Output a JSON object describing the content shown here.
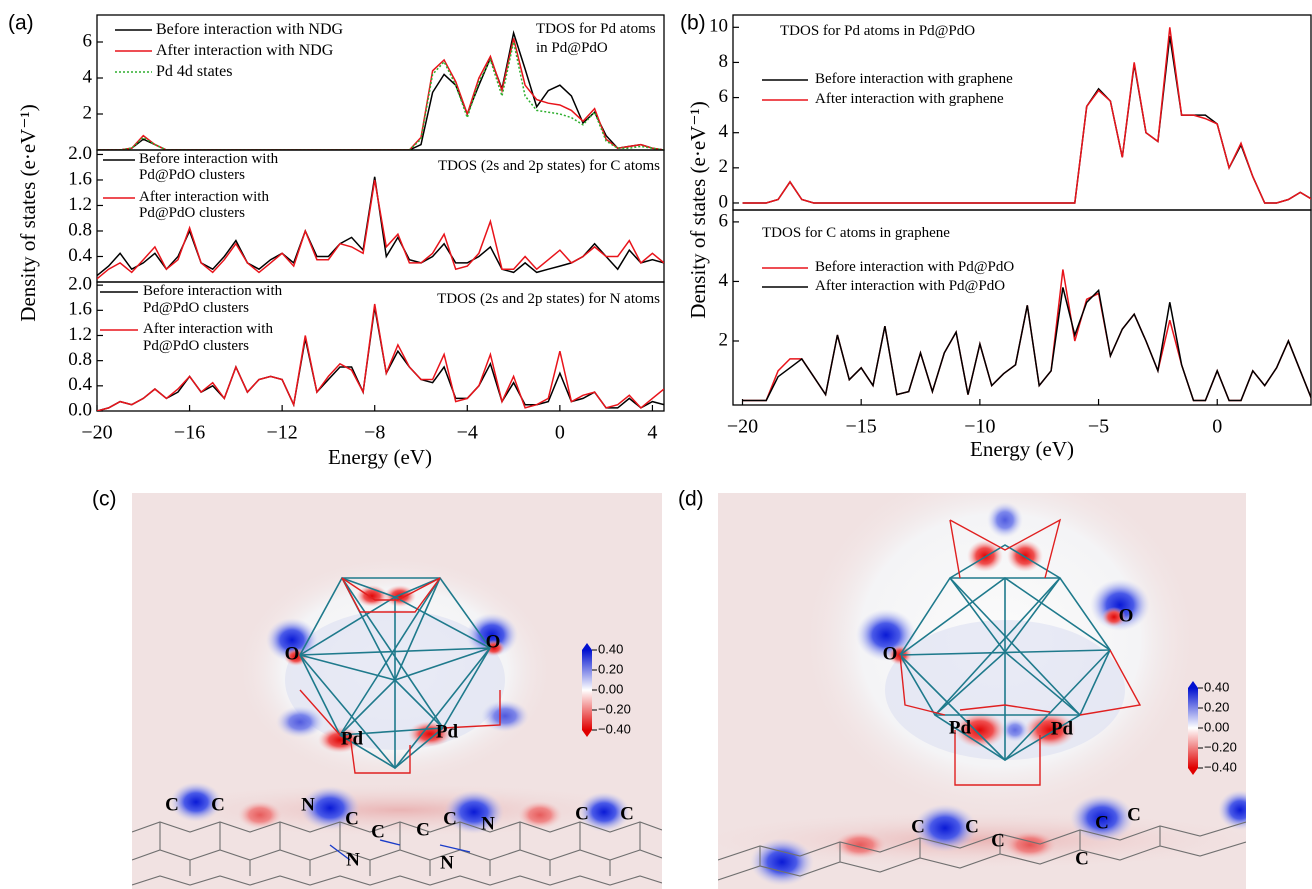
{
  "panels": [
    {
      "label": "(a)",
      "xlabel": "Energy (eV)",
      "ylabel": "Density of states (e·eV⁻¹)"
    },
    {
      "label": "(b)",
      "xlabel": "Energy (eV)",
      "ylabel": "Density of states (e·eV⁻¹)"
    },
    {
      "label": "(c)",
      "atoms": [
        "O",
        "O",
        "Pd",
        "Pd",
        "C",
        "C",
        "N",
        "C",
        "C",
        "N",
        "C",
        "C",
        "N",
        "N",
        "C",
        "C"
      ],
      "colorbar": [
        {
          "value": 0.4,
          "label": "0.40"
        },
        {
          "value": 0.2,
          "label": "0.20"
        },
        {
          "value": 0,
          "label": "0.00"
        },
        {
          "value": -0.2,
          "label": "−0.20"
        },
        {
          "value": -0.4,
          "label": "−0.40"
        }
      ]
    },
    {
      "label": "(d)",
      "atoms": [
        "O",
        "O",
        "Pd",
        "Pd",
        "C",
        "C",
        "C",
        "C",
        "C",
        "C"
      ],
      "colorbar": [
        {
          "value": 0.4,
          "label": "0.40"
        },
        {
          "value": 0.2,
          "label": "0.20"
        },
        {
          "value": 0,
          "label": "0.00"
        },
        {
          "value": -0.2,
          "label": "−0.20"
        },
        {
          "value": -0.4,
          "label": "−0.40"
        }
      ]
    }
  ],
  "chart_data": [
    {
      "type": "line",
      "annotation": "TDOS for Pd atoms\nin Pd@PdO",
      "x": [
        -20,
        -19.5,
        -19,
        -18.5,
        -18,
        -17.5,
        -17,
        -16.5,
        -16,
        -15.5,
        -15,
        -14.5,
        -14,
        -13.5,
        -13,
        -12.5,
        -12,
        -11.5,
        -11,
        -10.5,
        -10,
        -9.5,
        -9,
        -8.5,
        -8,
        -7.5,
        -7,
        -6.5,
        -6,
        -5.5,
        -5,
        -4.5,
        -4,
        -3.5,
        -3,
        -2.5,
        -2,
        -1.5,
        -1,
        -0.5,
        0,
        0.5,
        1,
        1.5,
        2,
        2.5,
        3,
        3.5,
        4,
        4.5
      ],
      "xlim": [
        -20,
        4.5
      ],
      "ylim": [
        0,
        7.5
      ],
      "yticks": [
        2,
        4,
        6
      ],
      "series": [
        {
          "name": "Before interaction with NDG",
          "color": "#000000",
          "linestyle": "solid",
          "values": [
            0,
            0,
            0,
            0.1,
            0.6,
            0.3,
            0,
            0,
            0,
            0,
            0,
            0,
            0,
            0,
            0,
            0,
            0,
            0,
            0,
            0,
            0,
            0,
            0,
            0,
            0,
            0,
            0,
            0,
            0.3,
            3.2,
            4.2,
            3.6,
            2,
            3.6,
            5.1,
            3.4,
            6.5,
            4.5,
            2.4,
            3.3,
            3.6,
            3,
            1.5,
            2.1,
            0.8,
            0.1,
            0.2,
            0.3,
            0.1,
            0
          ]
        },
        {
          "name": "After interaction with NDG",
          "color": "#e8141b",
          "linestyle": "solid",
          "values": [
            0,
            0,
            0,
            0.1,
            0.8,
            0.3,
            0,
            0,
            0,
            0,
            0,
            0,
            0,
            0,
            0,
            0,
            0,
            0,
            0,
            0,
            0,
            0,
            0,
            0,
            0,
            0,
            0,
            0,
            0.7,
            4.4,
            5,
            3.8,
            2,
            4,
            5.2,
            3.3,
            6.2,
            3.6,
            2.8,
            2.6,
            2.5,
            2.2,
            1.6,
            2.3,
            0.6,
            0.1,
            0.2,
            0.3,
            0.1,
            0
          ]
        },
        {
          "name": "Pd 4d states",
          "color": "#2eae2e",
          "linestyle": "dotted",
          "values": [
            0,
            0,
            0,
            0.1,
            0.7,
            0.3,
            0,
            0,
            0,
            0,
            0,
            0,
            0,
            0,
            0,
            0,
            0,
            0,
            0,
            0,
            0,
            0,
            0,
            0,
            0,
            0,
            0,
            0,
            0.6,
            4.2,
            4.9,
            3.6,
            1.8,
            3.8,
            5,
            3,
            6,
            3,
            2.2,
            2.1,
            2,
            1.8,
            1.4,
            2.1,
            0.5,
            0.1,
            0.1,
            0.2,
            0.1,
            0
          ]
        }
      ]
    },
    {
      "type": "line",
      "annotation": "TDOS (2s and 2p states) for C atoms",
      "x": [
        -20,
        -19.5,
        -19,
        -18.5,
        -18,
        -17.5,
        -17,
        -16.5,
        -16,
        -15.5,
        -15,
        -14.5,
        -14,
        -13.5,
        -13,
        -12.5,
        -12,
        -11.5,
        -11,
        -10.5,
        -10,
        -9.5,
        -9,
        -8.5,
        -8,
        -7.5,
        -7,
        -6.5,
        -6,
        -5.5,
        -5,
        -4.5,
        -4,
        -3.5,
        -3,
        -2.5,
        -2,
        -1.5,
        -1,
        -0.5,
        0,
        0.5,
        1,
        1.5,
        2,
        2.5,
        3,
        3.5,
        4,
        4.5
      ],
      "xlim": [
        -20,
        4.5
      ],
      "ylim": [
        0,
        2.07
      ],
      "yticks": [
        0.4,
        0.8,
        1.2,
        1.6,
        {
          "value": 2,
          "label": "2.0"
        }
      ],
      "series": [
        {
          "name": "Before interaction with\nPd@PdO clusters",
          "color": "#000000",
          "linestyle": "solid",
          "values": [
            0.1,
            0.25,
            0.45,
            0.2,
            0.3,
            0.45,
            0.2,
            0.4,
            0.8,
            0.3,
            0.2,
            0.4,
            0.65,
            0.3,
            0.2,
            0.35,
            0.45,
            0.3,
            0.8,
            0.4,
            0.4,
            0.6,
            0.7,
            0.5,
            1.65,
            0.4,
            0.7,
            0.35,
            0.3,
            0.4,
            0.6,
            0.3,
            0.3,
            0.4,
            0.55,
            0.2,
            0.15,
            0.3,
            0.15,
            0.2,
            0.25,
            0.3,
            0.4,
            0.6,
            0.4,
            0.2,
            0.5,
            0.3,
            0.35,
            0.3
          ]
        },
        {
          "name": "After interaction with\nPd@PdO clusters",
          "color": "#e8141b",
          "linestyle": "solid",
          "values": [
            0.05,
            0.2,
            0.3,
            0.15,
            0.35,
            0.55,
            0.2,
            0.35,
            0.85,
            0.3,
            0.15,
            0.35,
            0.6,
            0.3,
            0.15,
            0.3,
            0.45,
            0.25,
            0.8,
            0.35,
            0.35,
            0.6,
            0.55,
            0.45,
            1.6,
            0.55,
            0.75,
            0.3,
            0.3,
            0.45,
            0.75,
            0.2,
            0.25,
            0.45,
            0.95,
            0.2,
            0.2,
            0.4,
            0.2,
            0.35,
            0.5,
            0.3,
            0.4,
            0.55,
            0.4,
            0.4,
            0.65,
            0.3,
            0.45,
            0.3
          ]
        }
      ]
    },
    {
      "type": "line",
      "annotation": "TDOS (2s and 2p states) for N atoms",
      "x": [
        -20,
        -19.5,
        -19,
        -18.5,
        -18,
        -17.5,
        -17,
        -16.5,
        -16,
        -15.5,
        -15,
        -14.5,
        -14,
        -13.5,
        -13,
        -12.5,
        -12,
        -11.5,
        -11,
        -10.5,
        -10,
        -9.5,
        -9,
        -8.5,
        -8,
        -7.5,
        -7,
        -6.5,
        -6,
        -5.5,
        -5,
        -4.5,
        -4,
        -3.5,
        -3,
        -2.5,
        -2,
        -1.5,
        -1,
        -0.5,
        0,
        0.5,
        1,
        1.5,
        2,
        2.5,
        3,
        3.5,
        4,
        4.5
      ],
      "xlim": [
        -20,
        4.5
      ],
      "ylim": [
        0,
        2.05
      ],
      "yticks": [
        {
          "value": 0,
          "label": "0.0"
        },
        0.4,
        0.8,
        1.2,
        1.6,
        {
          "value": 2,
          "label": "2.0"
        }
      ],
      "xticks": [
        {
          "value": -20,
          "label": "−20"
        },
        {
          "value": -16,
          "label": "−16"
        },
        {
          "value": -12,
          "label": "−12"
        },
        {
          "value": -8,
          "label": "−8"
        },
        {
          "value": -4,
          "label": "−4"
        },
        0,
        4
      ],
      "series": [
        {
          "name": "Before interaction with\nPd@PdO clusters",
          "color": "#000000",
          "linestyle": "solid",
          "values": [
            0,
            0.05,
            0.15,
            0.1,
            0.2,
            0.35,
            0.2,
            0.3,
            0.55,
            0.3,
            0.4,
            0.2,
            0.7,
            0.3,
            0.5,
            0.55,
            0.5,
            0.1,
            1.15,
            0.3,
            0.5,
            0.7,
            0.7,
            0.3,
            1.65,
            0.6,
            0.95,
            0.7,
            0.5,
            0.45,
            0.7,
            0.2,
            0.2,
            0.4,
            0.75,
            0.15,
            0.45,
            0.1,
            0.1,
            0.15,
            0.6,
            0.15,
            0.2,
            0.3,
            0.05,
            0.05,
            0.2,
            0.05,
            0.15,
            0.1
          ]
        },
        {
          "name": "After interaction with\nPd@PdO clusters",
          "color": "#e8141b",
          "linestyle": "solid",
          "values": [
            0,
            0.05,
            0.15,
            0.1,
            0.2,
            0.35,
            0.2,
            0.35,
            0.55,
            0.3,
            0.45,
            0.2,
            0.7,
            0.3,
            0.5,
            0.55,
            0.5,
            0.1,
            1.2,
            0.3,
            0.55,
            0.75,
            0.65,
            0.3,
            1.7,
            0.6,
            1.05,
            0.7,
            0.5,
            0.5,
            0.9,
            0.15,
            0.2,
            0.4,
            0.9,
            0.15,
            0.55,
            0.05,
            0.1,
            0.2,
            0.95,
            0.15,
            0.25,
            0.3,
            0.05,
            0.1,
            0.25,
            0.05,
            0.2,
            0.35
          ]
        }
      ]
    },
    {
      "type": "line",
      "annotation": "TDOS for Pd atoms in Pd@PdO",
      "x": [
        -20,
        -19.5,
        -19,
        -18.5,
        -18,
        -17.5,
        -17,
        -16.5,
        -16,
        -15.5,
        -15,
        -14.5,
        -14,
        -13.5,
        -13,
        -12.5,
        -12,
        -11.5,
        -11,
        -10.5,
        -10,
        -9.5,
        -9,
        -8.5,
        -8,
        -7.5,
        -7,
        -6.5,
        -6,
        -5.5,
        -5,
        -4.5,
        -4,
        -3.5,
        -3,
        -2.5,
        -2,
        -1.5,
        -1,
        -0.5,
        0,
        0.5,
        1,
        1.5,
        2,
        2.5,
        3,
        3.5,
        4
      ],
      "xlim": [
        -20.4,
        3.95
      ],
      "ylim": [
        -0.4,
        10.7
      ],
      "yticks": [
        0,
        2,
        4,
        6,
        8,
        10
      ],
      "series": [
        {
          "name": "Before interaction with graphene",
          "color": "#000000",
          "linestyle": "solid",
          "values": [
            0,
            0,
            0,
            0.2,
            1.2,
            0.2,
            0,
            0,
            0,
            0,
            0,
            0,
            0,
            0,
            0,
            0,
            0,
            0,
            0,
            0,
            0,
            0,
            0,
            0,
            0,
            0,
            0,
            0,
            0,
            5.5,
            6.5,
            5.8,
            2.6,
            7.9,
            4,
            3.5,
            9.5,
            5,
            5,
            5,
            4.5,
            2,
            3.3,
            1.5,
            0,
            0,
            0.2,
            0.6,
            0.2
          ]
        },
        {
          "name": "After interaction with graphene",
          "color": "#e8141b",
          "linestyle": "solid",
          "values": [
            0,
            0,
            0,
            0.2,
            1.2,
            0.2,
            0,
            0,
            0,
            0,
            0,
            0,
            0,
            0,
            0,
            0,
            0,
            0,
            0,
            0,
            0,
            0,
            0,
            0,
            0,
            0,
            0,
            0,
            0,
            5.5,
            6.4,
            5.8,
            2.6,
            8,
            4,
            3.5,
            10,
            5,
            5,
            4.8,
            4.5,
            2,
            3.4,
            1.5,
            0,
            0,
            0.2,
            0.6,
            0.2
          ]
        }
      ]
    },
    {
      "type": "line",
      "annotation": "TDOS for C atoms in graphene",
      "x": [
        -20,
        -19.5,
        -19,
        -18.5,
        -18,
        -17.5,
        -17,
        -16.5,
        -16,
        -15.5,
        -15,
        -14.5,
        -14,
        -13.5,
        -13,
        -12.5,
        -12,
        -11.5,
        -11,
        -10.5,
        -10,
        -9.5,
        -9,
        -8.5,
        -8,
        -7.5,
        -7,
        -6.5,
        -6,
        -5.5,
        -5,
        -4.5,
        -4,
        -3.5,
        -3,
        -2.5,
        -2,
        -1.5,
        -1,
        -0.5,
        0,
        0.5,
        1,
        1.5,
        2,
        2.5,
        3,
        3.5,
        4
      ],
      "xlim": [
        -20.4,
        3.95
      ],
      "ylim": [
        -0.15,
        6.4
      ],
      "yticks": [
        2,
        4,
        6
      ],
      "xticks": [
        {
          "value": -20,
          "label": "−20"
        },
        {
          "value": -15,
          "label": "−15"
        },
        {
          "value": -10,
          "label": "−10"
        },
        {
          "value": -5,
          "label": "−5"
        },
        0
      ],
      "series": [
        {
          "name": "Before interaction with Pd@PdO",
          "color": "#e8141b",
          "linestyle": "solid",
          "values": [
            0,
            0,
            0,
            1,
            1.4,
            1.4,
            0.8,
            0.2,
            2.2,
            0.7,
            1.1,
            0.5,
            2.5,
            0.2,
            0.3,
            1.6,
            0.3,
            1.6,
            2.3,
            0.2,
            1.9,
            0.5,
            0.9,
            1.2,
            3.2,
            0.5,
            1,
            4.4,
            2,
            3.4,
            3.6,
            1.5,
            2.4,
            2.9,
            2,
            1,
            2.7,
            1.2,
            0,
            0,
            1,
            0,
            0,
            1,
            0.5,
            1.1,
            2,
            1,
            0
          ]
        },
        {
          "name": "After interaction with Pd@PdO",
          "color": "#000000",
          "linestyle": "solid",
          "values": [
            0,
            0,
            0,
            0.8,
            1.1,
            1.4,
            0.8,
            0.2,
            2.2,
            0.7,
            1.1,
            0.5,
            2.5,
            0.2,
            0.3,
            1.6,
            0.3,
            1.6,
            2.3,
            0.2,
            1.9,
            0.5,
            0.9,
            1.2,
            3.2,
            0.5,
            1,
            3.8,
            2.2,
            3.3,
            3.7,
            1.5,
            2.4,
            2.9,
            2,
            1,
            3.3,
            1.2,
            0,
            0,
            1,
            0,
            0,
            1,
            0.5,
            1.1,
            2,
            1,
            0
          ]
        }
      ]
    }
  ]
}
